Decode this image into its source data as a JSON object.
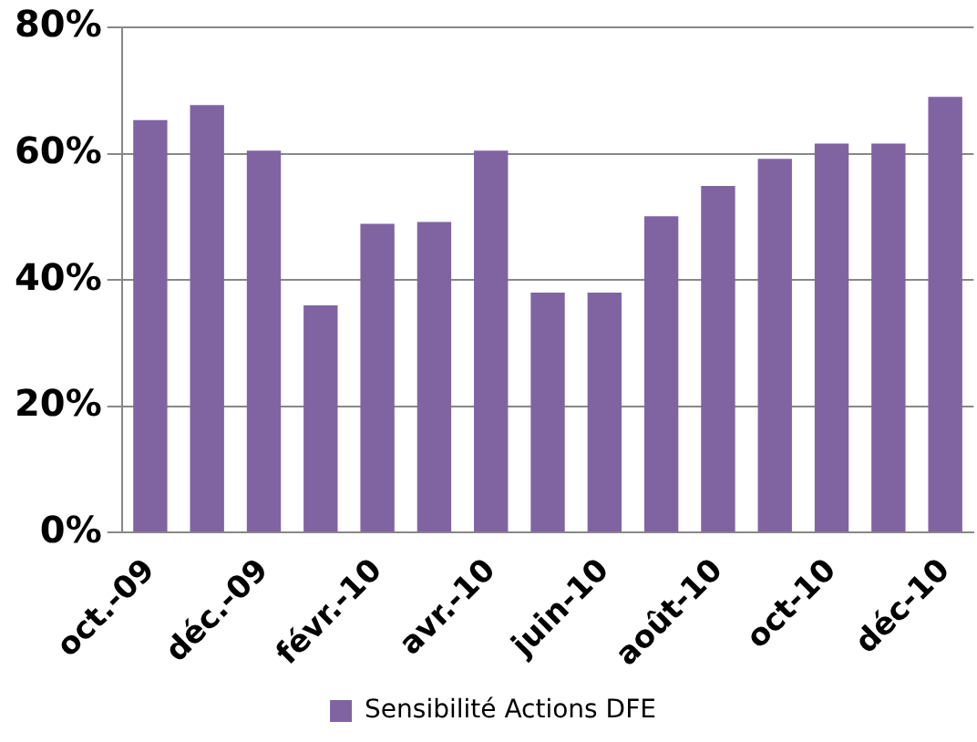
{
  "chart_data": {
    "type": "bar",
    "categories": [
      "oct.-09",
      null,
      "déc.-09",
      null,
      "févr.-10",
      null,
      "avr.-10",
      null,
      "juin-10",
      null,
      "août-10",
      null,
      "oct-10",
      null,
      "déc-10"
    ],
    "series": [
      {
        "name": "Sensibilité Actions DFE",
        "color": "#8064a2",
        "values": [
          65.3,
          67.7,
          60.5,
          36,
          48.9,
          49.2,
          60.5,
          38,
          38,
          50.1,
          54.9,
          59.2,
          61.6,
          61.6,
          69
        ]
      }
    ],
    "ylim": [
      0,
      80
    ],
    "yticks": [
      {
        "value": 0,
        "label": "0%"
      },
      {
        "value": 20,
        "label": "20%"
      },
      {
        "value": 40,
        "label": "40%"
      },
      {
        "value": 60,
        "label": "60%"
      },
      {
        "value": 80,
        "label": "80%"
      }
    ],
    "grid": "y",
    "legend": "bottom"
  }
}
